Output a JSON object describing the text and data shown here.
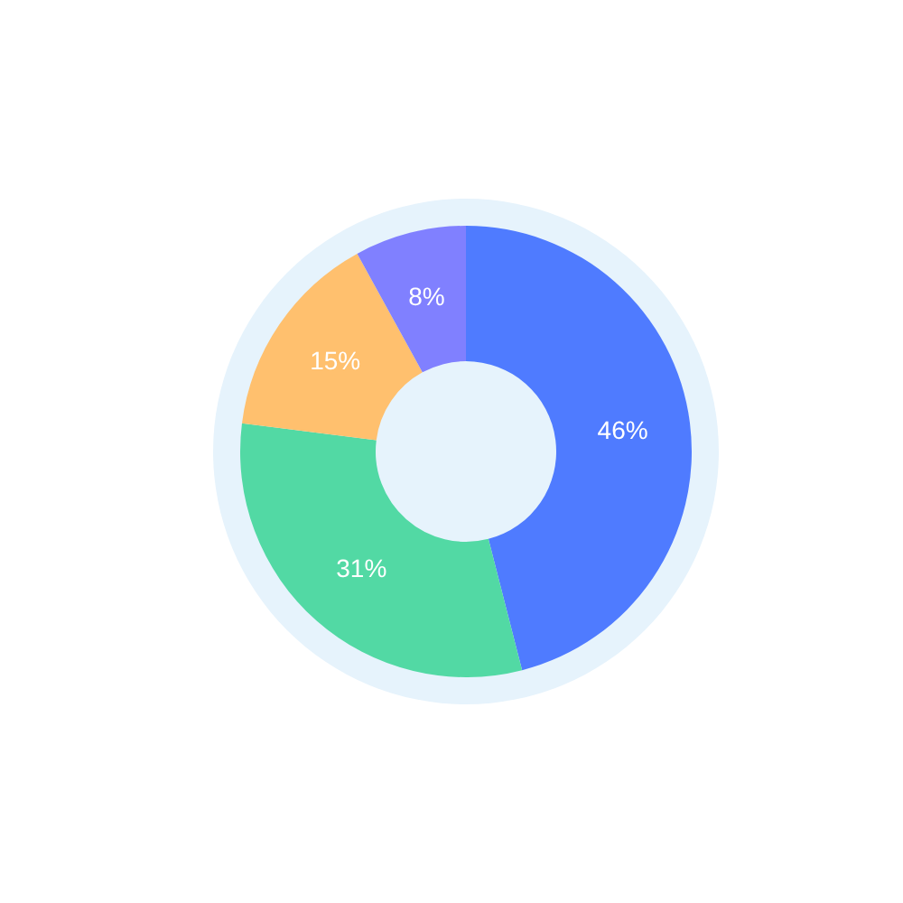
{
  "chart_data": {
    "type": "donut",
    "categories": [
      null,
      null,
      null,
      null
    ],
    "values": [
      46,
      31,
      15,
      8
    ],
    "colors": [
      "#4f7bff",
      "#52d9a4",
      "#ffc06e",
      "#8080ff"
    ],
    "value_labels": [
      "46%",
      "31%",
      "15%",
      "8%"
    ],
    "legend": false
  }
}
